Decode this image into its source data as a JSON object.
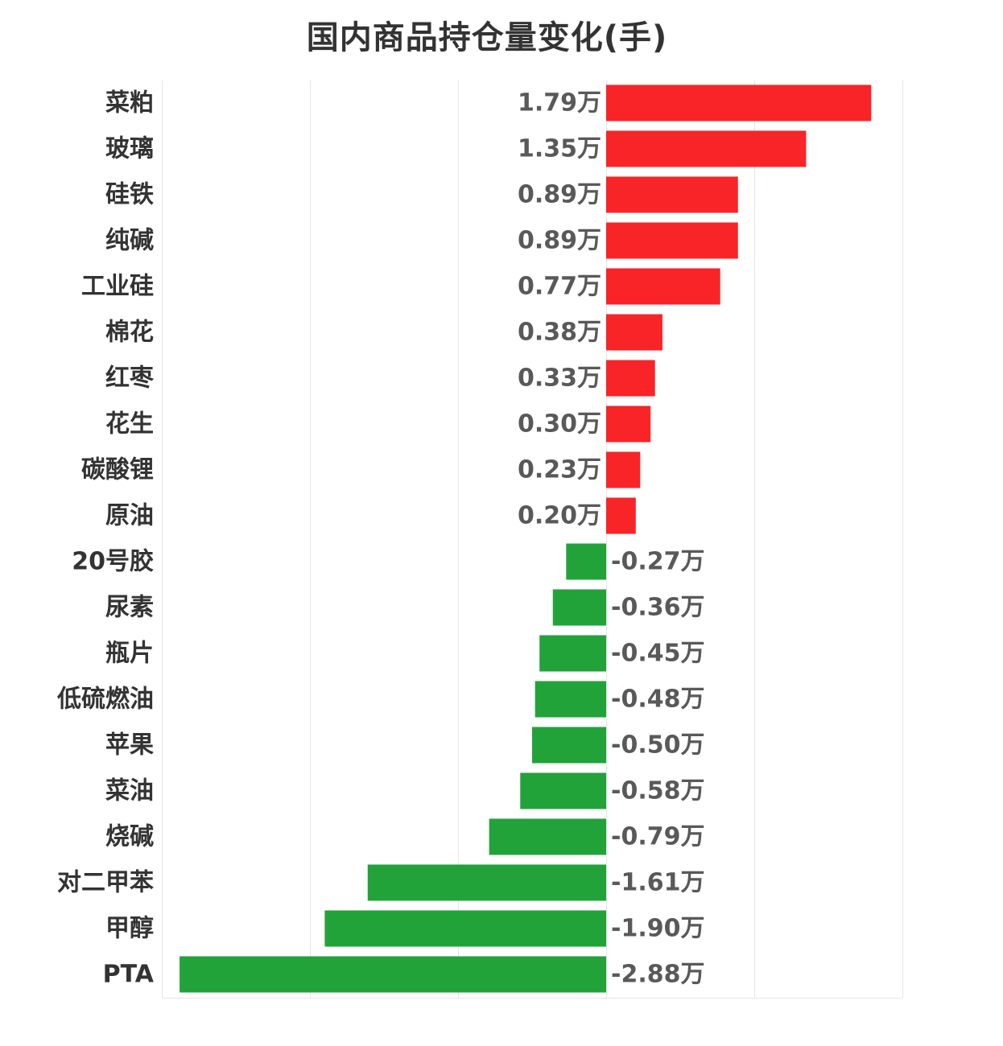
{
  "chart_data": {
    "type": "bar",
    "orientation": "horizontal",
    "title": "国内商品持仓量变化(手)",
    "unit_suffix": "万",
    "categories": [
      "菜粕",
      "玻璃",
      "硅铁",
      "纯碱",
      "工业硅",
      "棉花",
      "红枣",
      "花生",
      "碳酸锂",
      "原油",
      "20号胶",
      "尿素",
      "瓶片",
      "低硫燃油",
      "苹果",
      "菜油",
      "烧碱",
      "对二甲苯",
      "甲醇",
      "PTA"
    ],
    "values": [
      1.79,
      1.35,
      0.89,
      0.89,
      0.77,
      0.38,
      0.33,
      0.3,
      0.23,
      0.2,
      -0.27,
      -0.36,
      -0.45,
      -0.48,
      -0.5,
      -0.58,
      -0.79,
      -1.61,
      -1.9,
      -2.88
    ],
    "value_labels": [
      "1.79万",
      "1.35万",
      "0.89万",
      "0.89万",
      "0.77万",
      "0.38万",
      "0.33万",
      "0.30万",
      "0.23万",
      "0.20万",
      "-0.27万",
      "-0.36万",
      "-0.45万",
      "-0.48万",
      "-0.50万",
      "-0.58万",
      "-0.79万",
      "-1.61万",
      "-1.90万",
      "-2.88万"
    ],
    "xlim": [
      -3,
      2
    ],
    "grid": true,
    "legend": "none",
    "colors": {
      "positive": "#F82428",
      "negative": "#21A33A",
      "grid": "#E5E5E5"
    }
  }
}
